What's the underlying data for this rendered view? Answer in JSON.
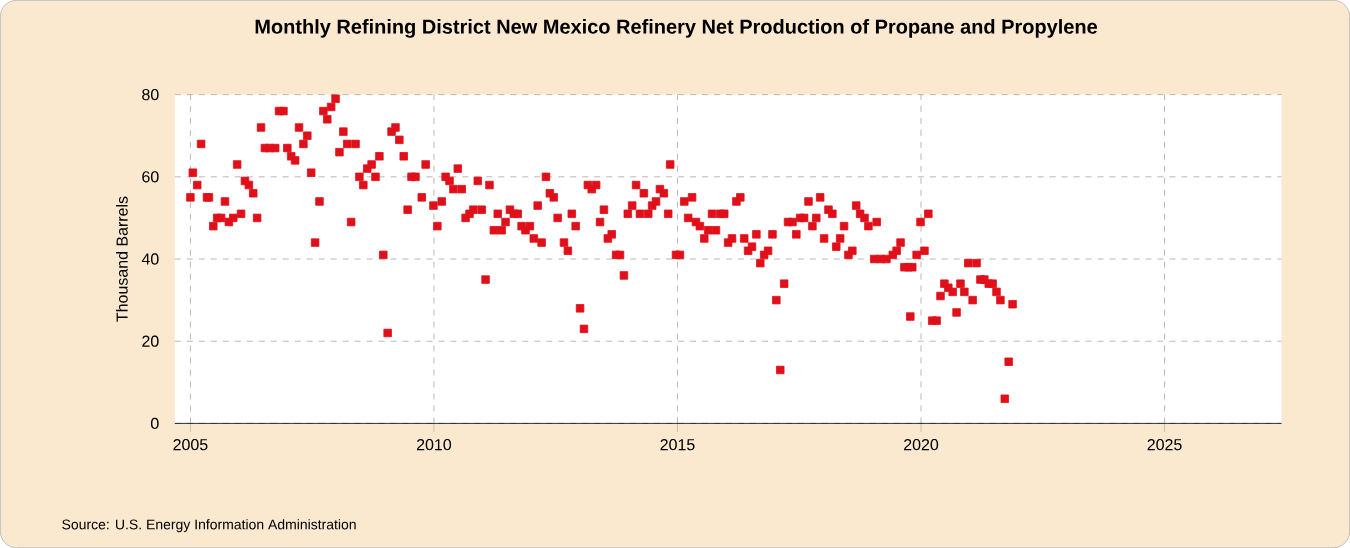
{
  "chart_data": {
    "type": "scatter",
    "title": "Monthly Refining District New Mexico Refinery Net Production of Propane and Propylene",
    "ylabel": "Thousand Barrels",
    "annotations": [
      "Source: U.S. Energy Information Administration"
    ],
    "xlim": [
      2004.68,
      2027.4
    ],
    "xticks": [
      2005,
      2010,
      2015,
      2020,
      2025
    ],
    "ylim": [
      0,
      80
    ],
    "yticks": [
      0,
      20,
      40,
      60,
      80
    ],
    "grid": true,
    "marker": "square",
    "series": [
      {
        "color": "#e0101a",
        "x": [
          2005.0,
          2005.05,
          2005.14,
          2005.22,
          2005.34,
          2005.38,
          2005.47,
          2005.55,
          2005.63,
          2005.71,
          2005.79,
          2005.88,
          2005.96,
          2006.04,
          2006.12,
          2006.2,
          2006.29,
          2006.37,
          2006.45,
          2006.53,
          2006.62,
          2006.74,
          2006.82,
          2006.91,
          2006.99,
          2007.07,
          2007.15,
          2007.23,
          2007.32,
          2007.4,
          2007.48,
          2007.56,
          2007.65,
          2007.73,
          2007.81,
          2007.89,
          2007.98,
          2008.06,
          2008.14,
          2008.22,
          2008.3,
          2008.39,
          2008.47,
          2008.55,
          2008.63,
          2008.72,
          2008.8,
          2008.88,
          2008.96,
          2009.05,
          2009.13,
          2009.21,
          2009.29,
          2009.38,
          2009.46,
          2009.54,
          2009.62,
          2009.75,
          2009.83,
          2009.99,
          2010.07,
          2010.16,
          2010.24,
          2010.32,
          2010.4,
          2010.49,
          2010.57,
          2010.65,
          2010.73,
          2010.81,
          2010.9,
          2010.98,
          2011.06,
          2011.14,
          2011.23,
          2011.31,
          2011.39,
          2011.47,
          2011.56,
          2011.64,
          2011.72,
          2011.8,
          2011.88,
          2011.97,
          2012.05,
          2012.13,
          2012.21,
          2012.3,
          2012.38,
          2012.46,
          2012.54,
          2012.67,
          2012.75,
          2012.83,
          2012.91,
          2013.0,
          2013.08,
          2013.16,
          2013.24,
          2013.33,
          2013.41,
          2013.49,
          2013.57,
          2013.65,
          2013.74,
          2013.82,
          2013.9,
          2013.98,
          2014.07,
          2014.15,
          2014.23,
          2014.31,
          2014.4,
          2014.48,
          2014.56,
          2014.64,
          2014.72,
          2014.81,
          2014.85,
          2014.97,
          2015.05,
          2015.14,
          2015.22,
          2015.3,
          2015.38,
          2015.46,
          2015.55,
          2015.63,
          2015.71,
          2015.79,
          2015.88,
          2015.96,
          2016.04,
          2016.12,
          2016.21,
          2016.29,
          2016.37,
          2016.45,
          2016.53,
          2016.62,
          2016.7,
          2016.78,
          2016.86,
          2016.95,
          2017.03,
          2017.11,
          2017.19,
          2017.27,
          2017.36,
          2017.44,
          2017.52,
          2017.6,
          2017.69,
          2017.77,
          2017.85,
          2017.93,
          2018.01,
          2018.1,
          2018.18,
          2018.26,
          2018.34,
          2018.42,
          2018.51,
          2018.59,
          2018.67,
          2018.75,
          2018.84,
          2018.92,
          2019.04,
          2019.09,
          2019.17,
          2019.29,
          2019.42,
          2019.5,
          2019.58,
          2019.66,
          2019.74,
          2019.78,
          2019.82,
          2019.91,
          2019.99,
          2020.07,
          2020.15,
          2020.23,
          2020.32,
          2020.4,
          2020.48,
          2020.56,
          2020.65,
          2020.73,
          2020.81,
          2020.89,
          2020.97,
          2021.06,
          2021.14,
          2021.22,
          2021.3,
          2021.39,
          2021.47,
          2021.55,
          2021.63,
          2021.72,
          2021.8,
          2021.88
        ],
        "values": [
          55,
          61,
          58,
          68,
          55,
          55,
          48,
          50,
          50,
          54,
          49,
          50,
          63,
          51,
          59,
          58,
          56,
          50,
          72,
          67,
          67,
          67,
          76,
          76,
          67,
          65,
          64,
          72,
          68,
          70,
          61,
          44,
          54,
          76,
          74,
          77,
          79,
          66,
          71,
          68,
          49,
          68,
          60,
          58,
          62,
          63,
          60,
          65,
          41,
          22,
          71,
          72,
          69,
          65,
          52,
          60,
          60,
          55,
          63,
          53,
          48,
          54,
          60,
          59,
          57,
          62,
          57,
          50,
          51,
          52,
          59,
          52,
          35,
          58,
          47,
          51,
          47,
          49,
          52,
          51,
          51,
          48,
          47,
          48,
          45,
          53,
          44,
          60,
          56,
          55,
          50,
          44,
          42,
          51,
          48,
          28,
          23,
          58,
          57,
          58,
          49,
          52,
          45,
          46,
          41,
          41,
          36,
          51,
          53,
          58,
          51,
          56,
          51,
          53,
          54,
          57,
          56,
          51,
          63,
          41,
          41,
          54,
          50,
          55,
          49,
          48,
          45,
          47,
          51,
          47,
          51,
          51,
          44,
          45,
          54,
          55,
          45,
          42,
          43,
          46,
          39,
          41,
          42,
          46,
          30,
          13,
          34,
          49,
          49,
          46,
          50,
          50,
          54,
          48,
          50,
          55,
          45,
          52,
          51,
          43,
          45,
          48,
          41,
          42,
          53,
          51,
          50,
          48,
          40,
          49,
          40,
          40,
          41,
          42,
          44,
          38,
          38,
          26,
          38,
          41,
          49,
          42,
          51,
          25,
          25,
          31,
          34,
          33,
          32,
          27,
          34,
          32,
          39,
          30,
          39,
          35,
          35,
          34,
          34,
          32,
          30,
          6,
          15,
          29
        ]
      }
    ]
  }
}
